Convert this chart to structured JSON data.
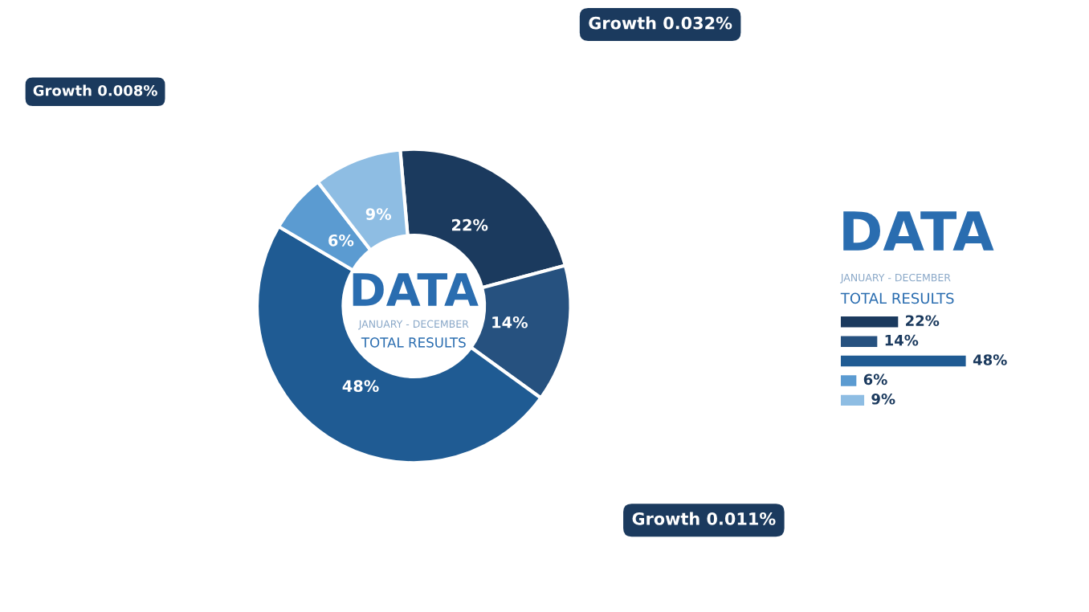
{
  "chart_data": [
    {
      "type": "donut",
      "title": "DATA",
      "subtitle": "JANUARY - DECEMBER",
      "categories": [
        null,
        null,
        null,
        null,
        null
      ],
      "values": [
        22,
        14,
        48,
        6,
        9
      ],
      "value_labels": [
        "22%",
        "14%",
        "48%",
        "6%",
        "9%"
      ],
      "colors": [
        "#1b3a5e",
        "#26517f",
        "#1f5b93",
        "#5b9bd1",
        "#8ebde3"
      ],
      "annotations": [
        "TOTAL RESULTS",
        "Growth 0.008%",
        "Growth 0.032%",
        "Growth 0.011%"
      ]
    },
    {
      "type": "bar",
      "orientation": "horizontal",
      "title": "DATA",
      "subtitle": "JANUARY - DECEMBER",
      "categories": [
        null,
        null,
        null,
        null,
        null
      ],
      "values": [
        22,
        14,
        48,
        6,
        9
      ],
      "value_labels": [
        "22%",
        "14%",
        "48%",
        "6%",
        "9%"
      ],
      "colors": [
        "#1b3a5e",
        "#26517f",
        "#1f5b93",
        "#5b9bd1",
        "#8ebde3"
      ],
      "annotations": [
        "TOTAL RESULTS"
      ]
    }
  ]
}
